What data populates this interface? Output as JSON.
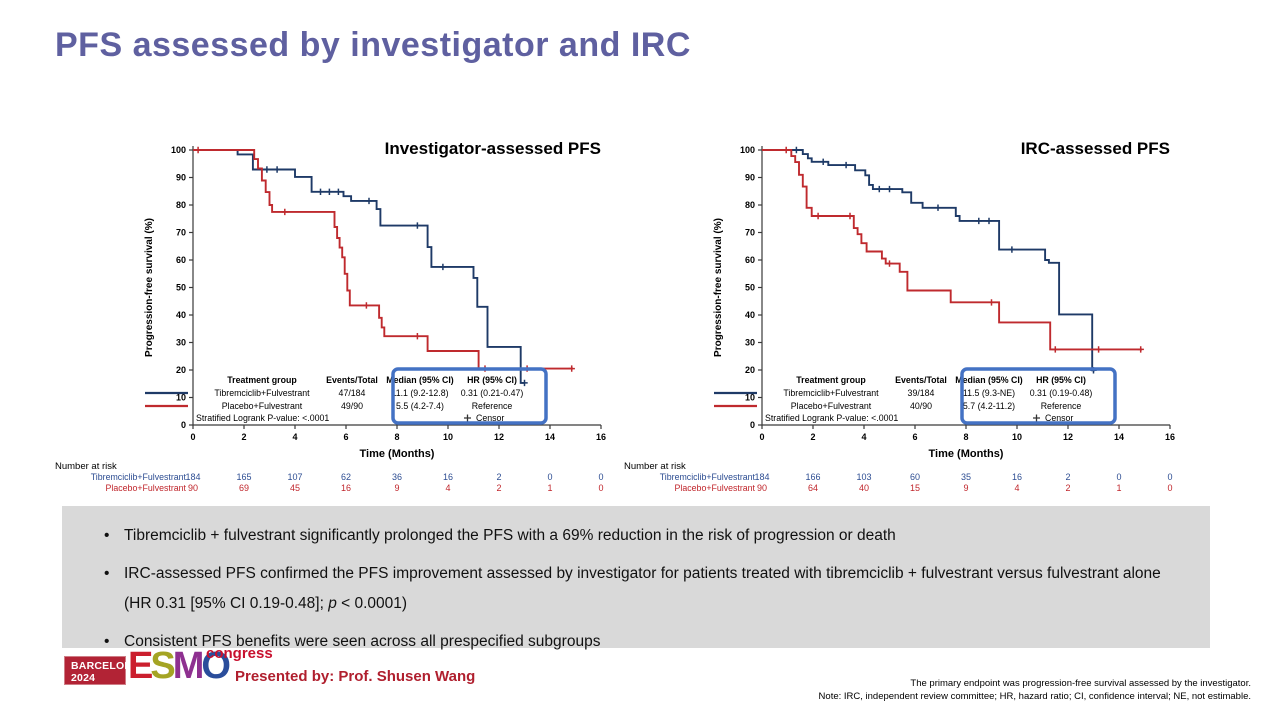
{
  "slide": {
    "title": "PFS assessed by investigator and IRC"
  },
  "chart_data": [
    {
      "type": "line",
      "title": "Investigator-assessed PFS",
      "xlabel": "Time (Months)",
      "ylabel": "Progression-free survival (%)",
      "xlim": [
        0,
        16
      ],
      "ylim": [
        0,
        100
      ],
      "x_ticks": [
        0,
        2,
        4,
        6,
        8,
        10,
        12,
        14,
        16
      ],
      "y_ticks": [
        0,
        10,
        20,
        30,
        40,
        50,
        60,
        70,
        80,
        90,
        100
      ],
      "series": [
        {
          "name": "Tibremciclib+Fulvestrant",
          "color": "#1e3a67",
          "points": [
            [
              0,
              100
            ],
            [
              1.75,
              100
            ],
            [
              1.75,
              98.4
            ],
            [
              2.35,
              98.4
            ],
            [
              2.35,
              92.9
            ],
            [
              4.0,
              92.9
            ],
            [
              4.0,
              90.2
            ],
            [
              4.65,
              90.2
            ],
            [
              4.65,
              84.8
            ],
            [
              5.9,
              84.8
            ],
            [
              5.9,
              83.2
            ],
            [
              6.2,
              83.2
            ],
            [
              6.2,
              81.5
            ],
            [
              7.2,
              81.5
            ],
            [
              7.2,
              78.5
            ],
            [
              7.35,
              78.5
            ],
            [
              7.35,
              72.5
            ],
            [
              9.2,
              72.5
            ],
            [
              9.2,
              64.7
            ],
            [
              9.35,
              64.7
            ],
            [
              9.35,
              57.5
            ],
            [
              11.0,
              57.5
            ],
            [
              11.0,
              53.5
            ],
            [
              11.15,
              53.5
            ],
            [
              11.15,
              43
            ],
            [
              11.55,
              43
            ],
            [
              11.55,
              28.4
            ],
            [
              12.85,
              28.4
            ],
            [
              12.85,
              15.3
            ],
            [
              13.0,
              15.3
            ]
          ],
          "censors": [
            2.9,
            3.3,
            5.0,
            5.35,
            5.7,
            6.9,
            8.8,
            9.8,
            13.0
          ]
        },
        {
          "name": "Placebo+Fulvestrant",
          "color": "#bf2a2e",
          "points": [
            [
              0,
              100
            ],
            [
              2.4,
              100
            ],
            [
              2.4,
              96.7
            ],
            [
              2.55,
              96.7
            ],
            [
              2.55,
              93.3
            ],
            [
              2.7,
              93.3
            ],
            [
              2.7,
              88.9
            ],
            [
              2.85,
              88.9
            ],
            [
              2.85,
              84.7
            ],
            [
              3.0,
              84.7
            ],
            [
              3.0,
              80
            ],
            [
              3.1,
              80
            ],
            [
              3.1,
              77.5
            ],
            [
              5.55,
              77.5
            ],
            [
              5.55,
              72
            ],
            [
              5.65,
              72
            ],
            [
              5.65,
              68
            ],
            [
              5.75,
              68
            ],
            [
              5.75,
              64.5
            ],
            [
              5.85,
              64.5
            ],
            [
              5.85,
              61
            ],
            [
              5.95,
              61
            ],
            [
              5.95,
              55
            ],
            [
              6.05,
              55
            ],
            [
              6.05,
              48.9
            ],
            [
              6.15,
              48.9
            ],
            [
              6.15,
              43.5
            ],
            [
              7.3,
              43.5
            ],
            [
              7.3,
              39
            ],
            [
              7.4,
              39
            ],
            [
              7.4,
              35.5
            ],
            [
              7.5,
              35.5
            ],
            [
              7.5,
              32.3
            ],
            [
              9.2,
              32.3
            ],
            [
              9.2,
              26.9
            ],
            [
              11.2,
              26.9
            ],
            [
              11.2,
              20.5
            ],
            [
              14.9,
              20.5
            ]
          ],
          "censors": [
            0.2,
            3.6,
            6.8,
            8.8,
            11.45,
            13.1,
            14.85
          ]
        }
      ],
      "legend": {
        "headers": [
          "Treatment group",
          "Events/Total",
          "Median (95% CI)",
          "HR (95% CI)"
        ],
        "rows": [
          {
            "group": "Tibremciclib+Fulvestrant",
            "events": "47/184",
            "median": "11.1 (9.2-12.8)",
            "hr": "0.31 (0.21-0.47)",
            "color": "#1e3a67"
          },
          {
            "group": "Placebo+Fulvestrant",
            "events": "49/90",
            "median": "5.5 (4.2-7.4)",
            "hr": "Reference",
            "color": "#bf2a2e"
          }
        ],
        "footnote": "Stratified Logrank P-value: <.0001",
        "censor_label": "Censor",
        "highlight_box_color": "#4472c4"
      },
      "risk_table": {
        "label": "Number at risk",
        "months": [
          0,
          2,
          4,
          6,
          8,
          10,
          12,
          14,
          16
        ],
        "rows": [
          {
            "name": "Tibremciclib+Fulvestrant",
            "color": "#2d4d92",
            "values": [
              184,
              165,
              107,
              62,
              36,
              16,
              2,
              0,
              0
            ]
          },
          {
            "name": "Placebo+Fulvestrant",
            "color": "#c0262c",
            "values": [
              90,
              69,
              45,
              16,
              9,
              4,
              2,
              1,
              0
            ]
          }
        ]
      }
    },
    {
      "type": "line",
      "title": "IRC-assessed PFS",
      "xlabel": "Time (Months)",
      "ylabel": "Progression-free survival (%)",
      "xlim": [
        0,
        16
      ],
      "ylim": [
        0,
        100
      ],
      "x_ticks": [
        0,
        2,
        4,
        6,
        8,
        10,
        12,
        14,
        16
      ],
      "y_ticks": [
        0,
        10,
        20,
        30,
        40,
        50,
        60,
        70,
        80,
        90,
        100
      ],
      "series": [
        {
          "name": "Tibremciclib+Fulvestrant",
          "color": "#1e3a67",
          "points": [
            [
              0,
              100
            ],
            [
              1.6,
              100
            ],
            [
              1.6,
              98.5
            ],
            [
              1.8,
              98.5
            ],
            [
              1.8,
              97
            ],
            [
              1.95,
              97
            ],
            [
              1.95,
              95.7
            ],
            [
              2.6,
              95.7
            ],
            [
              2.6,
              94.5
            ],
            [
              3.65,
              94.5
            ],
            [
              3.65,
              92.6
            ],
            [
              4.05,
              92.6
            ],
            [
              4.05,
              90.8
            ],
            [
              4.2,
              90.8
            ],
            [
              4.2,
              87.3
            ],
            [
              4.35,
              87.3
            ],
            [
              4.35,
              85.8
            ],
            [
              5.5,
              85.8
            ],
            [
              5.5,
              84.6
            ],
            [
              5.85,
              84.6
            ],
            [
              5.85,
              80.8
            ],
            [
              6.3,
              80.8
            ],
            [
              6.3,
              79
            ],
            [
              7.6,
              79
            ],
            [
              7.6,
              76
            ],
            [
              7.75,
              76
            ],
            [
              7.75,
              74.2
            ],
            [
              9.3,
              74.2
            ],
            [
              9.3,
              63.8
            ],
            [
              11.1,
              63.8
            ],
            [
              11.1,
              60
            ],
            [
              11.25,
              60
            ],
            [
              11.25,
              59
            ],
            [
              11.65,
              59
            ],
            [
              11.65,
              40.2
            ],
            [
              12.95,
              40.2
            ],
            [
              12.95,
              19.9
            ],
            [
              13.05,
              19.9
            ]
          ],
          "censors": [
            1.35,
            2.4,
            3.3,
            4.6,
            5.0,
            6.9,
            8.5,
            8.9,
            9.8,
            13.0
          ]
        },
        {
          "name": "Placebo+Fulvestrant",
          "color": "#bf2a2e",
          "points": [
            [
              0,
              100
            ],
            [
              1.15,
              100
            ],
            [
              1.15,
              97.8
            ],
            [
              1.3,
              97.8
            ],
            [
              1.3,
              95.6
            ],
            [
              1.45,
              95.6
            ],
            [
              1.45,
              91
            ],
            [
              1.6,
              91
            ],
            [
              1.6,
              86.7
            ],
            [
              1.75,
              86.7
            ],
            [
              1.75,
              79
            ],
            [
              1.95,
              79
            ],
            [
              1.95,
              76
            ],
            [
              3.6,
              76
            ],
            [
              3.6,
              71.6
            ],
            [
              3.75,
              71.6
            ],
            [
              3.75,
              69.4
            ],
            [
              3.9,
              69.4
            ],
            [
              3.9,
              66.1
            ],
            [
              4.1,
              66.1
            ],
            [
              4.1,
              63.1
            ],
            [
              4.7,
              63.1
            ],
            [
              4.7,
              60.5
            ],
            [
              4.85,
              60.5
            ],
            [
              4.85,
              58.7
            ],
            [
              5.4,
              58.7
            ],
            [
              5.4,
              55.7
            ],
            [
              5.7,
              55.7
            ],
            [
              5.7,
              48.9
            ],
            [
              7.4,
              48.9
            ],
            [
              7.4,
              44.6
            ],
            [
              9.3,
              44.6
            ],
            [
              9.3,
              37.3
            ],
            [
              11.3,
              37.3
            ],
            [
              11.3,
              27.5
            ],
            [
              14.9,
              27.5
            ]
          ],
          "censors": [
            0.95,
            2.2,
            3.45,
            5.0,
            9.0,
            11.5,
            13.2,
            14.85
          ]
        }
      ],
      "legend": {
        "headers": [
          "Treatment group",
          "Events/Total",
          "Median (95% CI)",
          "HR (95% CI)"
        ],
        "rows": [
          {
            "group": "Tibremciclib+Fulvestrant",
            "events": "39/184",
            "median": "11.5 (9.3-NE)",
            "hr": "0.31 (0.19-0.48)",
            "color": "#1e3a67"
          },
          {
            "group": "Placebo+Fulvestrant",
            "events": "40/90",
            "median": "5.7 (4.2-11.2)",
            "hr": "Reference",
            "color": "#bf2a2e"
          }
        ],
        "footnote": "Stratified Logrank P-value: <.0001",
        "censor_label": "Censor",
        "highlight_box_color": "#4472c4"
      },
      "risk_table": {
        "label": "Number at risk",
        "months": [
          0,
          2,
          4,
          6,
          8,
          10,
          12,
          14,
          16
        ],
        "rows": [
          {
            "name": "Tibremciclib+Fulvestrant",
            "color": "#2d4d92",
            "values": [
              184,
              166,
              103,
              60,
              35,
              16,
              2,
              0,
              0
            ]
          },
          {
            "name": "Placebo+Fulvestrant",
            "color": "#c0262c",
            "values": [
              90,
              64,
              40,
              15,
              9,
              4,
              2,
              1,
              0
            ]
          }
        ]
      }
    }
  ],
  "summary_bullets": [
    {
      "segments": [
        {
          "text": "Tibremciclib + fulvestrant significantly prolonged the PFS with a 69% reduction in the risk of progression or death"
        }
      ]
    },
    {
      "segments": [
        {
          "text": "IRC-assessed PFS confirmed the PFS improvement assessed by investigator for patients treated with tibremciclib + fulvestrant versus fulvestrant alone (HR 0.31 [95% CI 0.19-0.48]; "
        },
        {
          "text": "p",
          "italic": true
        },
        {
          "text": " < 0.0001)"
        }
      ]
    },
    {
      "segments": [
        {
          "text": "Consistent PFS benefits were seen across all prespecified subgroups"
        }
      ]
    }
  ],
  "footer": {
    "congress_badge": {
      "line1": "BARCELONA",
      "line2": "2024"
    },
    "esmo_letters": [
      {
        "ch": "E",
        "color": "#cb1f2e"
      },
      {
        "ch": "S",
        "color": "#a4a424"
      },
      {
        "ch": "M",
        "color": "#8e3090"
      },
      {
        "ch": "O",
        "color": "#2a4d9b"
      }
    ],
    "congress_word": "congress",
    "presented_by": "Presented by: Prof. Shusen Wang",
    "notes": [
      "The primary endpoint was progression-free survival assessed by the investigator.",
      "Note: IRC, independent review committee; HR, hazard ratio; CI, confidence interval; NE, not estimable."
    ]
  }
}
